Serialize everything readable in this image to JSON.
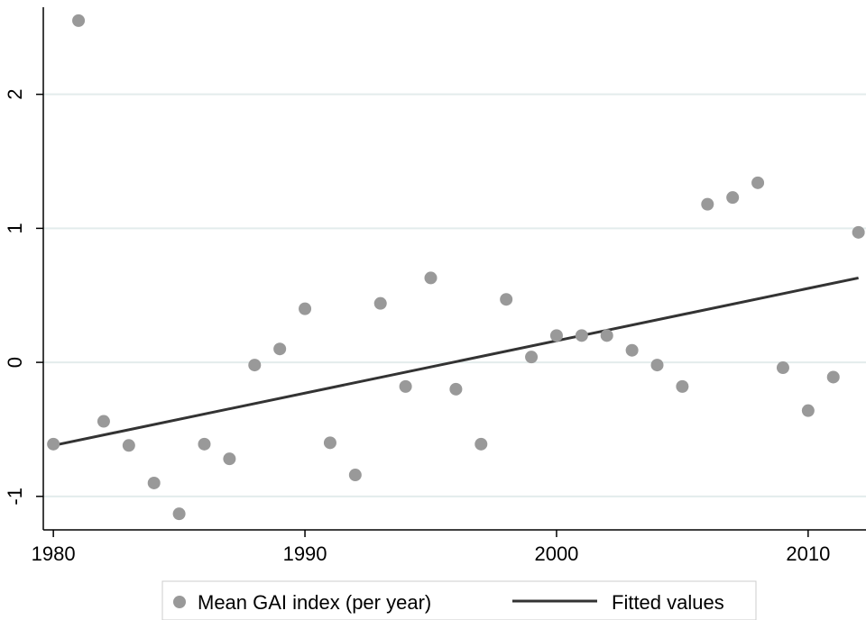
{
  "chart_data": {
    "type": "scatter",
    "title": "",
    "xlabel": "",
    "ylabel": "",
    "xlim": [
      1979.6,
      2012.3
    ],
    "ylim": [
      -1.25,
      2.65
    ],
    "x_ticks": [
      1980,
      1990,
      2000,
      2010
    ],
    "x_tick_labels": [
      "1980",
      "1990",
      "2000",
      "2010"
    ],
    "y_ticks": [
      -1,
      0,
      1,
      2
    ],
    "y_tick_labels": [
      "-1",
      "0",
      "1",
      "2"
    ],
    "grid": "horizontal",
    "legend_position": "bottom",
    "colors": {
      "points": "#999999",
      "fit_line": "#333333",
      "grid": "#e3ecec",
      "axis": "#000000"
    },
    "series": [
      {
        "name": "Mean GAI index (per year)",
        "kind": "scatter",
        "x": [
          1980,
          1981,
          1982,
          1983,
          1984,
          1985,
          1986,
          1987,
          1988,
          1989,
          1990,
          1991,
          1992,
          1993,
          1994,
          1995,
          1996,
          1997,
          1998,
          1999,
          2000,
          2001,
          2002,
          2003,
          2004,
          2005,
          2006,
          2007,
          2008,
          2009,
          2010,
          2011,
          2012
        ],
        "y": [
          -0.61,
          2.55,
          -0.44,
          -0.62,
          -0.9,
          -1.13,
          -0.61,
          -0.72,
          -0.02,
          0.1,
          0.4,
          -0.6,
          -0.84,
          0.44,
          -0.18,
          0.63,
          -0.2,
          -0.61,
          0.47,
          0.04,
          0.2,
          0.2,
          0.2,
          0.09,
          -0.02,
          -0.18,
          1.18,
          1.23,
          1.34,
          -0.04,
          -0.36,
          -0.11,
          0.97
        ]
      },
      {
        "name": "Fitted values",
        "kind": "line",
        "x": [
          1980,
          2012
        ],
        "y": [
          -0.62,
          0.63
        ]
      }
    ]
  }
}
